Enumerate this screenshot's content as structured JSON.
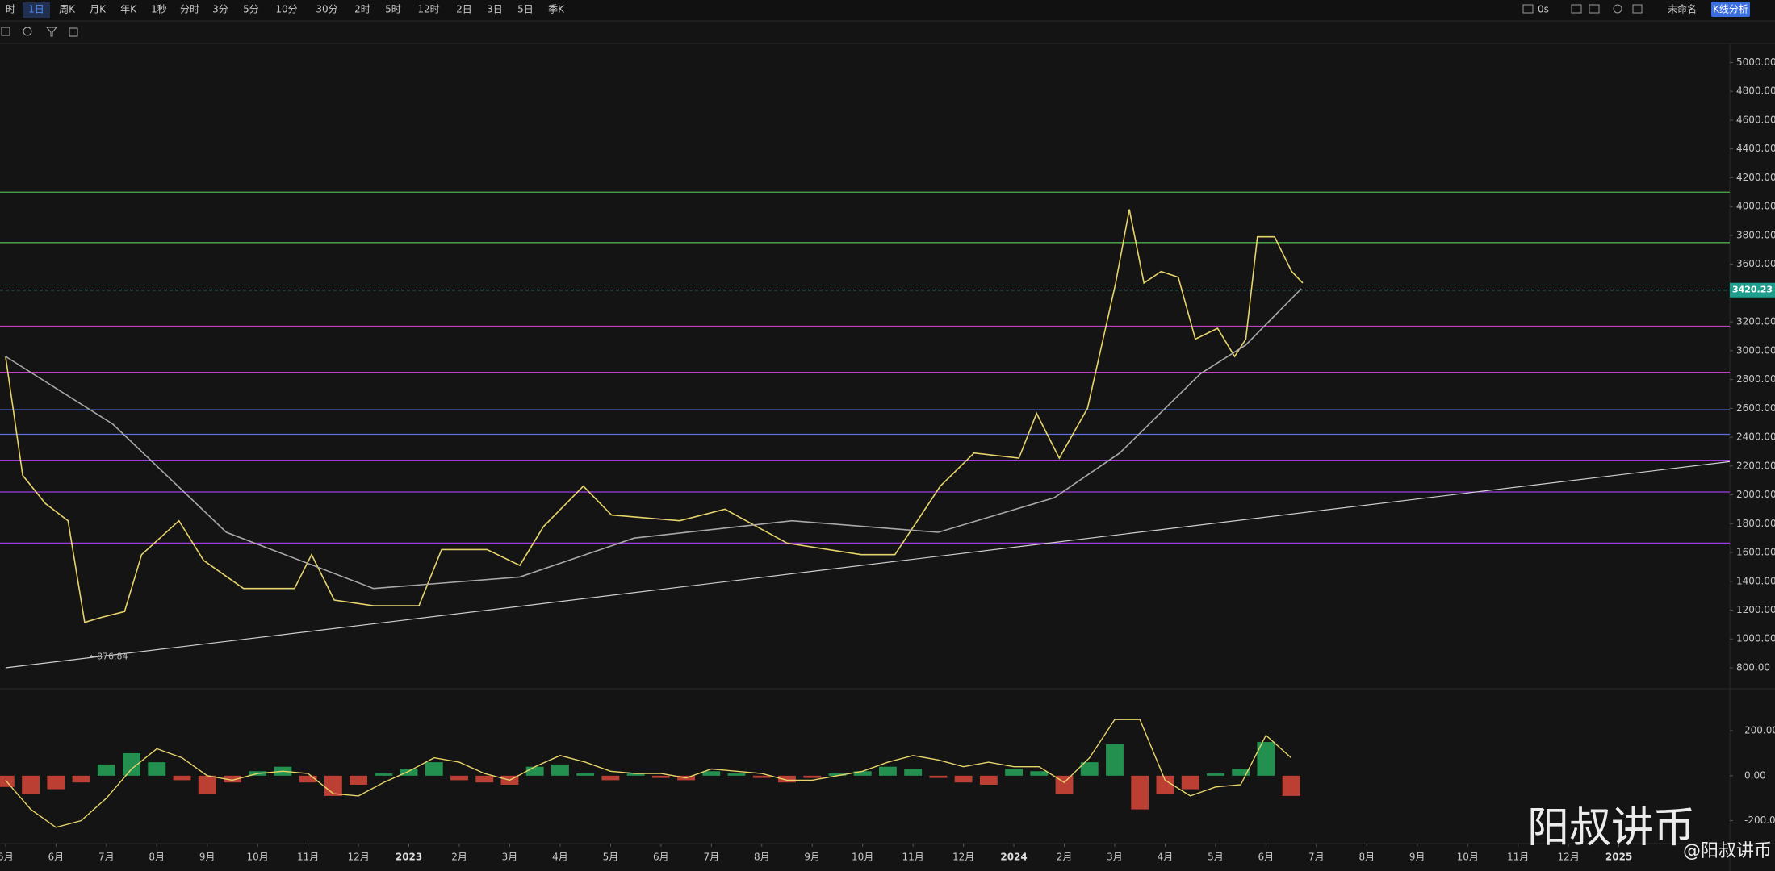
{
  "toolbar": {
    "intervals": [
      "时",
      "1日",
      "周K",
      "月K",
      "年K",
      "1秒",
      "分时",
      "3分",
      "5分",
      "10分",
      "30分",
      "2时",
      "5时",
      "12时",
      "2日",
      "3日",
      "5日",
      "季K"
    ],
    "selected_index": 1,
    "status": "0s",
    "layout_name": "未命名",
    "analysis_button": "K线分析"
  },
  "chart_data": {
    "type": "line",
    "xlim": [
      -0.11,
      34.2
    ],
    "xticks": [
      {
        "value": 0,
        "label": "5月"
      },
      {
        "value": 1,
        "label": "6月"
      },
      {
        "value": 2,
        "label": "7月"
      },
      {
        "value": 3,
        "label": "8月"
      },
      {
        "value": 4,
        "label": "9月"
      },
      {
        "value": 5,
        "label": "10月"
      },
      {
        "value": 6,
        "label": "11月"
      },
      {
        "value": 7,
        "label": "12月"
      },
      {
        "value": 8,
        "label": "2023"
      },
      {
        "value": 9,
        "label": "2月"
      },
      {
        "value": 10,
        "label": "3月"
      },
      {
        "value": 11,
        "label": "4月"
      },
      {
        "value": 12,
        "label": "5月"
      },
      {
        "value": 13,
        "label": "6月"
      },
      {
        "value": 14,
        "label": "7月"
      },
      {
        "value": 15,
        "label": "8月"
      },
      {
        "value": 16,
        "label": "9月"
      },
      {
        "value": 17,
        "label": "10月"
      },
      {
        "value": 18,
        "label": "11月"
      },
      {
        "value": 19,
        "label": "12月"
      },
      {
        "value": 20,
        "label": "2024"
      },
      {
        "value": 21,
        "label": "2月"
      },
      {
        "value": 22,
        "label": "3月"
      },
      {
        "value": 23,
        "label": "4月"
      },
      {
        "value": 24,
        "label": "5月"
      },
      {
        "value": 25,
        "label": "6月"
      },
      {
        "value": 26,
        "label": "7月"
      },
      {
        "value": 27,
        "label": "8月"
      },
      {
        "value": 28,
        "label": "9月"
      },
      {
        "value": 29,
        "label": "10月"
      },
      {
        "value": 30,
        "label": "11月"
      },
      {
        "value": 31,
        "label": "12月"
      },
      {
        "value": 32,
        "label": "2025"
      }
    ],
    "ylim": [
      660,
      5120
    ],
    "yticks": [
      {
        "value": 800,
        "label": "800.00"
      },
      {
        "value": 1000,
        "label": "1000.00"
      },
      {
        "value": 1200,
        "label": "1200.00"
      },
      {
        "value": 1400,
        "label": "1400.00"
      },
      {
        "value": 1600,
        "label": "1600.00"
      },
      {
        "value": 1800,
        "label": "1800.00"
      },
      {
        "value": 2000,
        "label": "2000.00"
      },
      {
        "value": 2200,
        "label": "2200.00"
      },
      {
        "value": 2400,
        "label": "2400.00"
      },
      {
        "value": 2600,
        "label": "2600.00"
      },
      {
        "value": 2800,
        "label": "2800.00"
      },
      {
        "value": 3000,
        "label": "3000.00"
      },
      {
        "value": 3200,
        "label": "3200.00"
      },
      {
        "value": 3400,
        "label": "3400.00"
      },
      {
        "value": 3600,
        "label": "3600.00"
      },
      {
        "value": 3800,
        "label": "3800.00"
      },
      {
        "value": 4000,
        "label": "4000.00"
      },
      {
        "value": 4200,
        "label": "4200.00"
      },
      {
        "value": 4400,
        "label": "4400.00"
      },
      {
        "value": 4600,
        "label": "4600.00"
      },
      {
        "value": 4800,
        "label": "4800.00"
      },
      {
        "value": 5000,
        "label": "5000.00"
      }
    ],
    "series": [
      {
        "color": "#e6d36a",
        "x": [
          0,
          0.34,
          0.79,
          1.24,
          1.57,
          1.91,
          2.36,
          2.7,
          3.44,
          3.93,
          4.72,
          5.73,
          6.07,
          6.52,
          7.3,
          8.2,
          8.65,
          9.55,
          10.2,
          10.67,
          11.46,
          12.02,
          13.37,
          14.27,
          15.5,
          16.97,
          17.64,
          18.54,
          19.21,
          20.1,
          20.45,
          20.9,
          21.46,
          22.02,
          22.29,
          22.58,
          22.92,
          23.26,
          23.6,
          24.04,
          24.38,
          24.6,
          24.83,
          25.17,
          25.51,
          25.73
        ],
        "values": [
          2960,
          2135,
          1940,
          1820,
          1115,
          1150,
          1190,
          1585,
          1820,
          1545,
          1350,
          1350,
          1585,
          1270,
          1230,
          1230,
          1620,
          1620,
          1510,
          1780,
          2060,
          1860,
          1820,
          1900,
          1665,
          1585,
          1585,
          2060,
          2290,
          2255,
          2565,
          2255,
          2600,
          3470,
          3980,
          3470,
          3550,
          3510,
          3080,
          3155,
          2960,
          3080,
          3790,
          3790,
          3550,
          3470
        ]
      },
      {
        "color": "#a8a8a8",
        "x": [
          0,
          2.13,
          4.38,
          7.3,
          10.2,
          12.47,
          15.6,
          18.5,
          20.8,
          22.1,
          23.7,
          24.6,
          25.7
        ],
        "values": [
          2960,
          2490,
          1740,
          1350,
          1430,
          1700,
          1820,
          1740,
          1980,
          2290,
          2840,
          3040,
          3430
        ]
      }
    ],
    "trendline": {
      "x": [
        0,
        34.2
      ],
      "values": [
        800,
        2230
      ],
      "color": "#cfcfcf"
    },
    "levels": [
      {
        "value": 4100,
        "color": "#4caf50"
      },
      {
        "value": 3750,
        "color": "#4caf50"
      },
      {
        "value": 3170,
        "color": "#c040c0"
      },
      {
        "value": 2850,
        "color": "#c040c0"
      },
      {
        "value": 2590,
        "color": "#5a6fe0"
      },
      {
        "value": 2420,
        "color": "#5a6fe0"
      },
      {
        "value": 2240,
        "color": "#9a3ee0"
      },
      {
        "value": 2020,
        "color": "#9a3ee0"
      },
      {
        "value": 1665,
        "color": "#9a3ee0"
      }
    ],
    "current_price": 3420.23,
    "low": {
      "x": 1.6,
      "value": 876.84,
      "label": "←876.84"
    },
    "macd": {
      "ylim": [
        -295,
        380
      ],
      "yticks": [
        {
          "value": 200,
          "label": "200.00"
        },
        {
          "value": 0,
          "label": "0.00"
        },
        {
          "value": -200,
          "label": "-200.00"
        }
      ],
      "x": [
        0,
        0.5,
        1,
        1.5,
        2,
        2.5,
        3,
        3.5,
        4,
        4.5,
        5,
        5.5,
        6,
        6.5,
        7,
        7.5,
        8,
        8.5,
        9,
        9.5,
        10,
        10.5,
        11,
        11.5,
        12,
        12.5,
        13,
        13.5,
        14,
        14.5,
        15,
        15.5,
        16,
        16.5,
        17,
        17.5,
        18,
        18.5,
        19,
        19.5,
        20,
        20.5,
        21,
        21.5,
        22,
        22.5,
        23,
        23.5,
        24,
        24.5,
        25,
        25.5
      ],
      "hist": [
        -50,
        -80,
        -60,
        -30,
        50,
        100,
        60,
        -20,
        -80,
        -30,
        20,
        40,
        -30,
        -90,
        -40,
        10,
        30,
        60,
        -20,
        -30,
        -40,
        40,
        50,
        10,
        -20,
        10,
        -10,
        -20,
        20,
        10,
        -10,
        -30,
        -10,
        10,
        20,
        40,
        30,
        -10,
        -30,
        -40,
        30,
        20,
        -80,
        60,
        140,
        -150,
        -80,
        -60,
        10,
        30,
        150,
        -90
      ],
      "dif": [
        -20,
        -150,
        -230,
        -200,
        -100,
        30,
        120,
        80,
        0,
        -20,
        10,
        20,
        10,
        -80,
        -90,
        -30,
        20,
        80,
        60,
        10,
        -20,
        40,
        90,
        60,
        20,
        10,
        10,
        -10,
        30,
        20,
        10,
        -20,
        -20,
        0,
        20,
        60,
        90,
        70,
        40,
        60,
        40,
        40,
        -30,
        80,
        250,
        250,
        -20,
        -90,
        -50,
        -40,
        180,
        80
      ],
      "up_color": "#26a65b",
      "down_color": "#d9463a",
      "line_color": "#e6d36a"
    }
  },
  "watermark": {
    "title": "阳叔讲币",
    "handle": "@阳叔讲币"
  }
}
